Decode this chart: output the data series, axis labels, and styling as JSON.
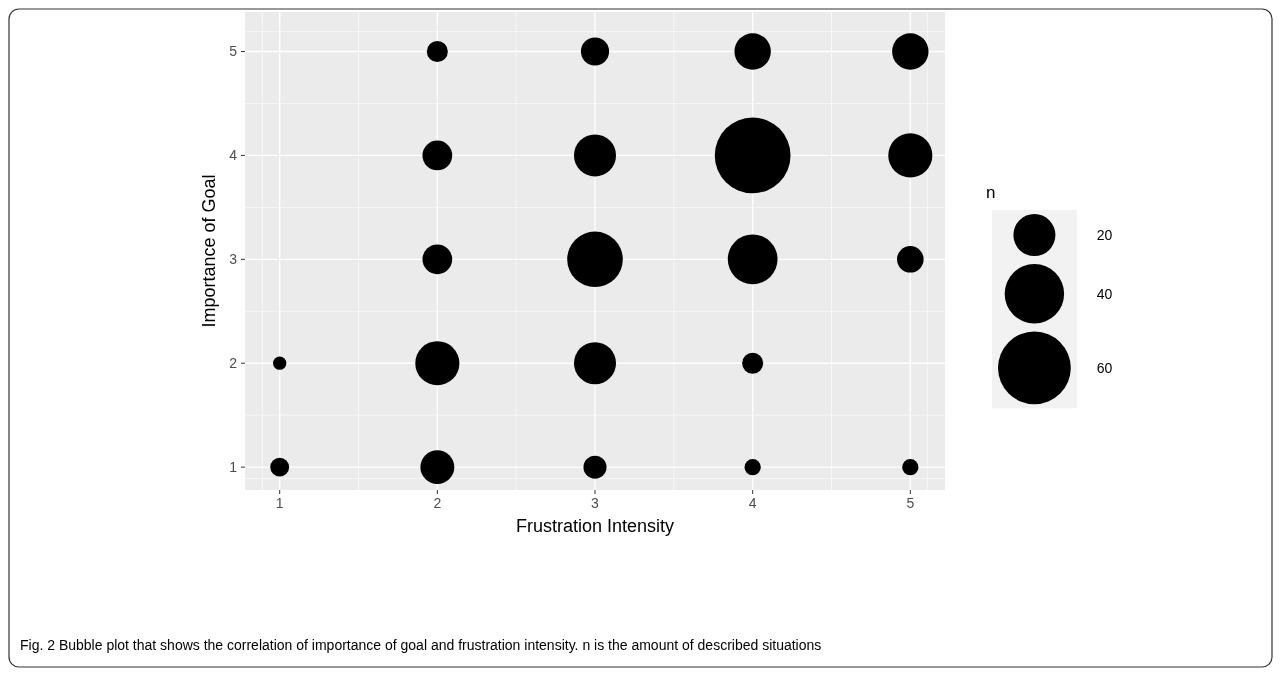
{
  "chart_data": {
    "type": "bubble",
    "xlabel": "Frustration Intensity",
    "ylabel": "Importance of Goal",
    "legend_title": "n",
    "grid": true,
    "xlim": [
      0.78,
      5.22
    ],
    "ylim": [
      0.78,
      5.38
    ],
    "xticks": [
      1,
      2,
      3,
      4,
      5
    ],
    "yticks": [
      1,
      2,
      3,
      4,
      5
    ],
    "size_legend": [
      20,
      40,
      60
    ],
    "series": [
      {
        "color": "#000000",
        "x": [
          1,
          1,
          2,
          2,
          2,
          2,
          2,
          3,
          3,
          3,
          3,
          3,
          4,
          4,
          4,
          4,
          4,
          5,
          5,
          5,
          5
        ],
        "values": [
          1,
          2,
          1,
          2,
          3,
          4,
          5,
          1,
          2,
          3,
          4,
          5,
          1,
          2,
          3,
          4,
          5,
          1,
          3,
          4,
          5
        ],
        "sizes": [
          4,
          2,
          13,
          22,
          10,
          10,
          5,
          6,
          20,
          35,
          20,
          9,
          3,
          5,
          28,
          65,
          15,
          3,
          8,
          22,
          15
        ]
      }
    ],
    "annotations": [
      "Fig. 2 Bubble plot that shows the correlation of importance of goal and frustration intensity. n is the amount of described situations"
    ]
  }
}
